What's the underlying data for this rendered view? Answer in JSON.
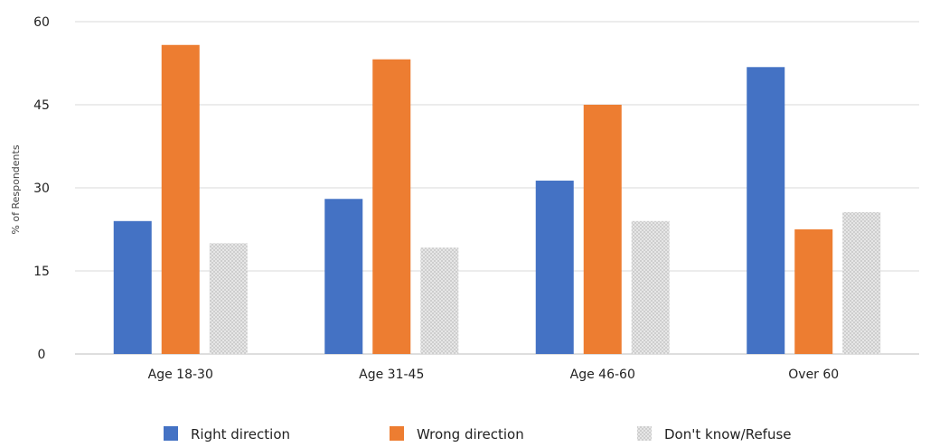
{
  "chart_data": {
    "type": "bar",
    "title": "",
    "xlabel": "",
    "ylabel": "% of Respondents",
    "ylim": [
      0,
      60
    ],
    "yticks": [
      0,
      15,
      30,
      45,
      60
    ],
    "grid": true,
    "legend_position": "bottom",
    "categories": [
      "Age 18-30",
      "Age 31-45",
      "Age 46-60",
      "Over 60"
    ],
    "series": [
      {
        "name": "Right direction",
        "values": [
          24,
          28,
          31.3,
          51.8
        ],
        "color": "#4472C4",
        "pattern": "solid"
      },
      {
        "name": "Wrong direction",
        "values": [
          55.8,
          53.2,
          45,
          22.5
        ],
        "color": "#ED7D31",
        "pattern": "solid"
      },
      {
        "name": "Don't know/Refuse",
        "values": [
          20,
          19.2,
          24,
          25.6
        ],
        "color": "#D0D0D0",
        "pattern": "dotted"
      }
    ]
  }
}
